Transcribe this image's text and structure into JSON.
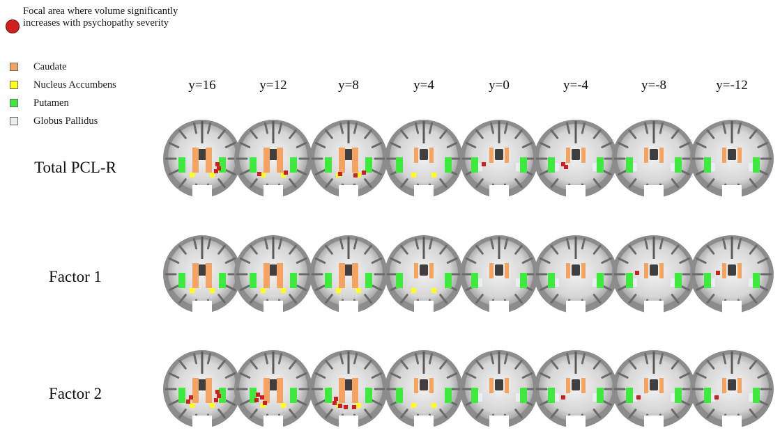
{
  "legend": {
    "focal": {
      "label": "Focal area where volume significantly increases with psychopathy severity",
      "color": "#d0201e"
    },
    "regions": [
      {
        "label": "Caudate",
        "color": "#f4a460"
      },
      {
        "label": "Nucleus Accumbens",
        "color": "#ffff1a"
      },
      {
        "label": "Putamen",
        "color": "#3dea3d"
      },
      {
        "label": "Globus Pallidus",
        "color": "#e9eef2"
      }
    ]
  },
  "columns": [
    "y=16",
    "y=12",
    "y=8",
    "y=4",
    "y=0",
    "y=-4",
    "y=-8",
    "y=-12"
  ],
  "rows": [
    "Total PCL-R",
    "Factor 1",
    "Factor 2"
  ]
}
